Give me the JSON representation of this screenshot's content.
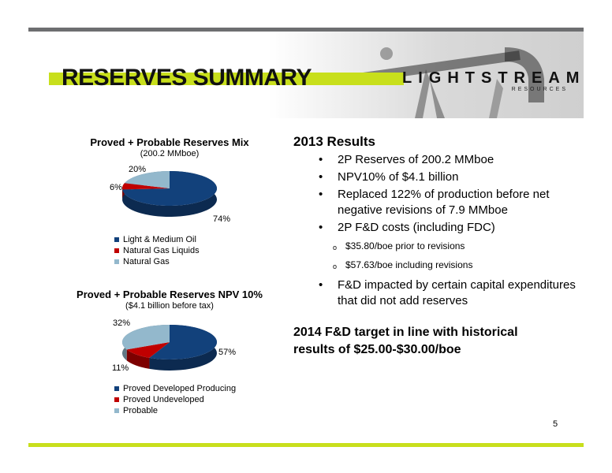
{
  "page": {
    "title": "RESERVES SUMMARY",
    "number": "5",
    "logo": {
      "word": "LIGHTSTREAM",
      "sub": "RESOURCES"
    }
  },
  "chart_data": [
    {
      "type": "pie",
      "title": "Proved + Probable Reserves Mix",
      "subtitle": "(200.2 MMboe)",
      "categories": [
        "Light & Medium Oil",
        "Natural Gas Liquids",
        "Natural Gas"
      ],
      "values": [
        74,
        6,
        20
      ],
      "labels": [
        "74%",
        "6%",
        "20%"
      ],
      "colors": [
        "#12417b",
        "#c00000",
        "#93b8cc"
      ],
      "legend_position": "bottom-left"
    },
    {
      "type": "pie",
      "title": "Proved + Probable Reserves NPV 10%",
      "subtitle": "($4.1 billion before tax)",
      "categories": [
        "Proved Developed Producing",
        "Proved Undeveloped",
        "Probable"
      ],
      "values": [
        57,
        11,
        32
      ],
      "labels": [
        "57%",
        "11%",
        "32%"
      ],
      "colors": [
        "#12417b",
        "#c00000",
        "#93b8cc"
      ],
      "legend_position": "bottom-left"
    }
  ],
  "results": {
    "title": "2013 Results",
    "bullets": [
      "2P Reserves of 200.2 MMboe",
      "NPV10% of $4.1 billion",
      "Replaced 122% of production before net negative revisions of 7.9 MMboe",
      "2P F&D costs (including FDC)"
    ],
    "sub_bullets": [
      "$35.80/boe prior to revisions",
      "$57.63/boe including revisions"
    ],
    "last_bullet": "F&D impacted by certain capital expenditures that did not add reserves",
    "bullet_char": "•",
    "sub_bullet_char": "o",
    "target": "2014 F&D target in line with historical results of $25.00-$30.00/boe"
  },
  "colors": {
    "accent": "#c8df1c",
    "dark_bar": "#6d6e70"
  }
}
